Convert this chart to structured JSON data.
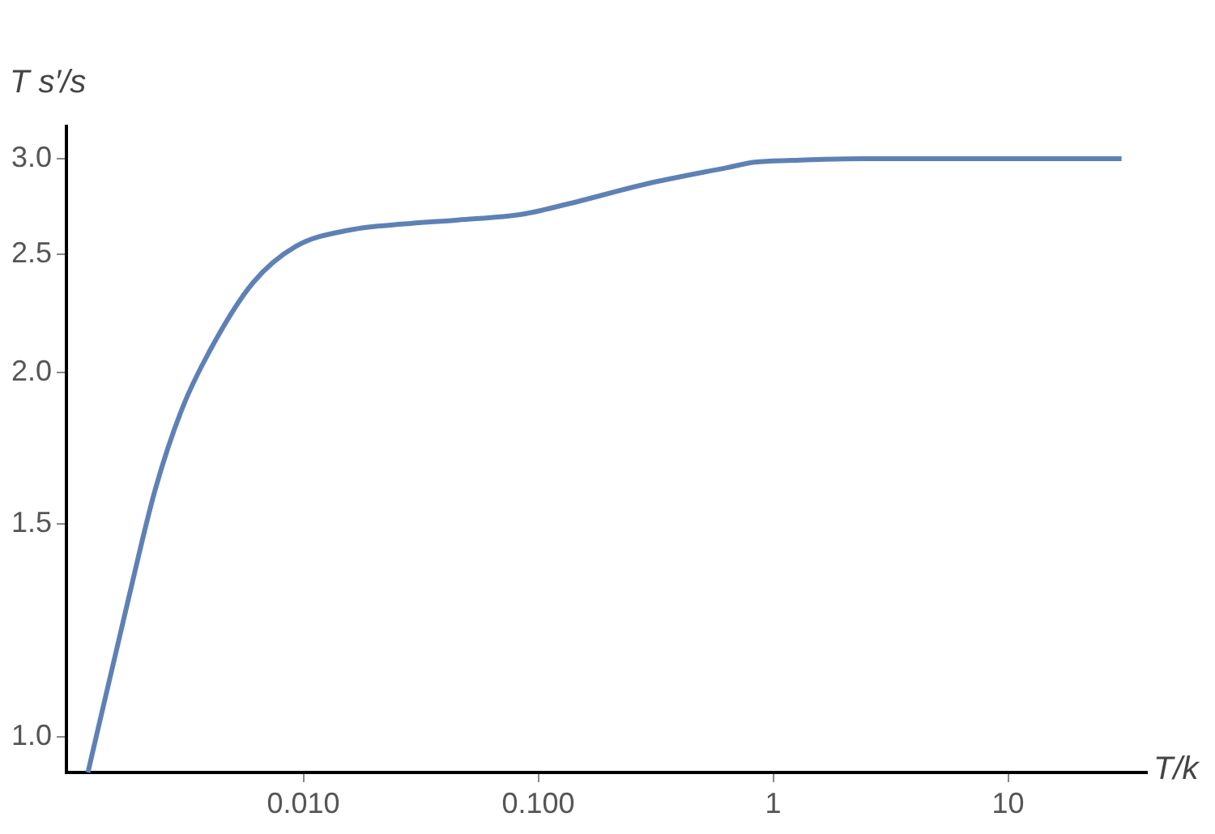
{
  "chart_data": {
    "type": "line",
    "xlabel": "T/k",
    "ylabel": "T s′/s",
    "log": "xy",
    "grid": false,
    "legend": false,
    "marker": "none",
    "line_style": "solid",
    "xlim": [
      0.00098,
      39
    ],
    "ylim": [
      0.935,
      3.19
    ],
    "xticks": [
      {
        "value": 0.01,
        "label": "0.010"
      },
      {
        "value": 0.1,
        "label": "0.100"
      },
      1,
      10
    ],
    "yticks": [
      {
        "value": 1,
        "label": "1.0"
      },
      {
        "value": 1.5,
        "label": "1.5"
      },
      {
        "value": 2,
        "label": "2.0"
      },
      {
        "value": 2.5,
        "label": "2.5"
      },
      {
        "value": 3,
        "label": "3.0"
      }
    ],
    "series": [
      {
        "color": "#5e81b5",
        "x": [
          0.00121,
          0.0018,
          0.00234,
          0.00306,
          0.0042,
          0.0061,
          0.0093,
          0.0158,
          0.0268,
          0.0454,
          0.0857,
          0.131,
          0.29,
          0.641,
          0.835,
          1.2,
          2.4,
          30.4
        ],
        "values": [
          0.935,
          1.3,
          1.6,
          1.87,
          2.12,
          2.37,
          2.54,
          2.62,
          2.65,
          2.67,
          2.7,
          2.75,
          2.86,
          2.95,
          2.98,
          2.99,
          3.0,
          3.0
        ]
      }
    ]
  }
}
